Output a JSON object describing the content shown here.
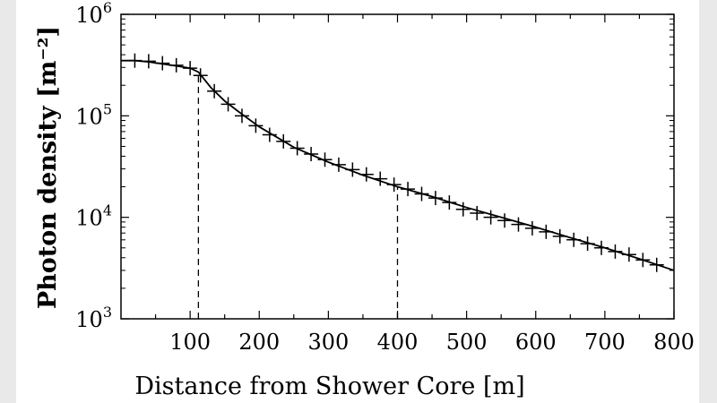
{
  "chart_data": {
    "type": "scatter",
    "title": "",
    "xlabel": "Distance from Shower Core [m]",
    "ylabel": "Photon density [m⁻²]",
    "xlim": [
      0,
      800
    ],
    "ylim": [
      1000,
      1000000
    ],
    "yscale": "log",
    "grid": false,
    "x_ticks": [
      "100",
      "200",
      "300",
      "400",
      "500",
      "600",
      "700",
      "800"
    ],
    "y_ticks": [
      {
        "base": "10",
        "exp": "3"
      },
      {
        "base": "10",
        "exp": "4"
      },
      {
        "base": "10",
        "exp": "5"
      },
      {
        "base": "10",
        "exp": "6"
      }
    ],
    "markers": [
      112,
      400
    ],
    "series": [
      {
        "style": "crosses",
        "x": [
          20,
          40,
          60,
          80,
          100,
          115,
          135,
          155,
          175,
          195,
          215,
          235,
          255,
          275,
          295,
          315,
          335,
          355,
          375,
          395,
          415,
          435,
          455,
          475,
          495,
          515,
          535,
          555,
          575,
          595,
          615,
          635,
          655,
          675,
          695,
          715,
          735,
          755,
          775
        ],
        "y": [
          350000,
          345000,
          330000,
          315000,
          295000,
          250000,
          175000,
          130000,
          100000,
          80000,
          65000,
          56000,
          48000,
          42000,
          37000,
          33000,
          29500,
          26500,
          24000,
          21000,
          19000,
          17000,
          15500,
          14000,
          12000,
          11000,
          10000,
          9300,
          8500,
          7800,
          7200,
          6500,
          6000,
          5500,
          5000,
          4600,
          4300,
          3800,
          3400
        ]
      },
      {
        "style": "line",
        "x": [
          0,
          20,
          40,
          60,
          80,
          100,
          112,
          130,
          150,
          170,
          200,
          250,
          300,
          350,
          400,
          450,
          500,
          550,
          600,
          650,
          700,
          750,
          800
        ],
        "y": [
          350000,
          350000,
          340000,
          325000,
          310000,
          295000,
          270000,
          190000,
          140000,
          110000,
          78000,
          49000,
          35000,
          26000,
          20000,
          16000,
          12500,
          10000,
          8000,
          6300,
          5000,
          3900,
          3000
        ]
      }
    ]
  }
}
